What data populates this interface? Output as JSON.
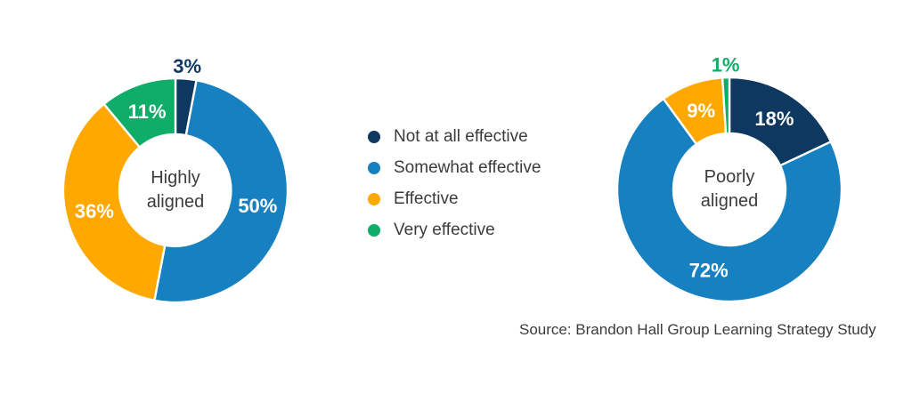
{
  "colors": {
    "navy": "#0e385f",
    "blue": "#1780c0",
    "orange": "#fea800",
    "green": "#10ad68",
    "text_dark": "#3b3b3b",
    "inside_label": "#ffffff"
  },
  "legend": {
    "items": [
      {
        "label": "Not at all effective",
        "color_key": "navy"
      },
      {
        "label": "Somewhat effective",
        "color_key": "blue"
      },
      {
        "label": "Effective",
        "color_key": "orange"
      },
      {
        "label": "Very effective",
        "color_key": "green"
      }
    ]
  },
  "source": {
    "text": "Source: Brandon Hall Group Learning Strategy Study"
  },
  "chart_data": [
    {
      "type": "pie",
      "subtype": "donut",
      "center_label": "Highly aligned",
      "unit": "%",
      "legend_position": "right-of-chart",
      "segments": [
        {
          "name": "Not at all effective",
          "value": 3,
          "color_key": "navy",
          "label_outside": true
        },
        {
          "name": "Somewhat effective",
          "value": 50,
          "color_key": "blue"
        },
        {
          "name": "Effective",
          "value": 36,
          "color_key": "orange"
        },
        {
          "name": "Very effective",
          "value": 11,
          "color_key": "green"
        }
      ]
    },
    {
      "type": "pie",
      "subtype": "donut",
      "center_label": "Poorly aligned",
      "unit": "%",
      "legend_position": "left-of-chart",
      "segments": [
        {
          "name": "Not at all effective",
          "value": 18,
          "color_key": "navy"
        },
        {
          "name": "Somewhat effective",
          "value": 72,
          "color_key": "blue"
        },
        {
          "name": "Effective",
          "value": 9,
          "color_key": "orange"
        },
        {
          "name": "Very effective",
          "value": 1,
          "color_key": "green",
          "label_outside": true
        }
      ]
    }
  ]
}
